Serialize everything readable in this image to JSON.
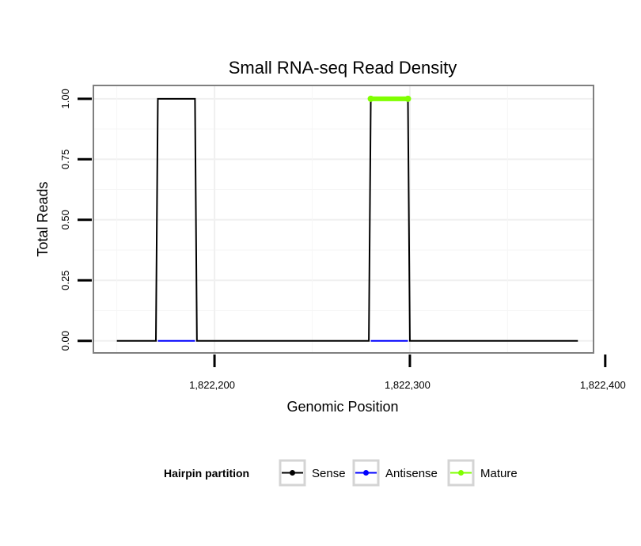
{
  "chart_data": {
    "type": "line",
    "title": "Small RNA-seq Read Density",
    "xlabel": "Genomic Position",
    "ylabel": "Total Reads",
    "xlim": [
      1822138,
      1822394
    ],
    "ylim": [
      -0.05,
      1.055
    ],
    "x_ticks": [
      {
        "value": 1822200,
        "label": "1,822,200"
      },
      {
        "value": 1822300,
        "label": "1,822,300"
      },
      {
        "value": 1822400,
        "label": "1,822,400"
      }
    ],
    "y_ticks": [
      {
        "value": 0,
        "label": "0.00"
      },
      {
        "value": 0.25,
        "label": "0.25"
      },
      {
        "value": 0.5,
        "label": "0.50"
      },
      {
        "value": 0.75,
        "label": "0.75"
      },
      {
        "value": 1,
        "label": "1.00"
      }
    ],
    "grid": true,
    "legend": {
      "title": "Hairpin partition",
      "position": "bottom",
      "entries": [
        {
          "label": "Sense",
          "color": "#000000"
        },
        {
          "label": "Antisense",
          "color": "#0000ff"
        },
        {
          "label": "Mature",
          "color": "#7fff00"
        }
      ]
    },
    "series": [
      {
        "name": "Sense",
        "color": "#000000",
        "x": [
          1822150,
          1822170,
          1822171,
          1822190,
          1822191,
          1822279,
          1822280,
          1822299,
          1822300,
          1822386
        ],
        "y": [
          0,
          0,
          1,
          1,
          0,
          0,
          1,
          1,
          0,
          0
        ]
      },
      {
        "name": "Antisense",
        "color": "#0000ff",
        "x": [
          1822171,
          1822190,
          1822280,
          1822299
        ],
        "y": [
          0,
          0,
          0,
          0
        ],
        "segments": [
          [
            0,
            1
          ],
          [
            2,
            3
          ]
        ]
      },
      {
        "name": "Mature",
        "color": "#7fff00",
        "x": [
          1822280,
          1822299
        ],
        "y": [
          1,
          1
        ]
      }
    ]
  }
}
